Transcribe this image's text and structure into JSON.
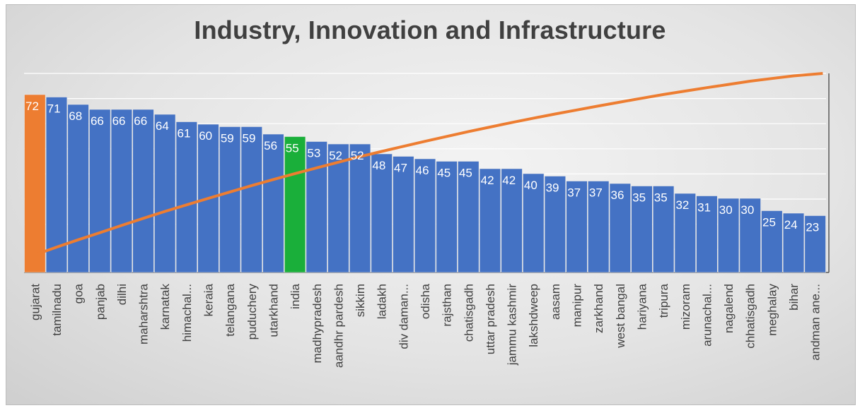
{
  "colors": {
    "bar": "#4472c4",
    "highlight_top": "#ed7d31",
    "highlight_india": "#1aaf3a",
    "cumulative_line": "#ed7d31"
  },
  "chart_data": {
    "type": "bar",
    "title": "Industry, Innovation and Infrastructure",
    "xlabel": "",
    "ylabel": "",
    "ylim": [
      0,
      72
    ],
    "grid": true,
    "legend": "none",
    "categories": [
      "gujarat",
      "tamilnadu",
      "goa",
      "panjab",
      "dilhi",
      "maharshtra",
      "karnatak",
      "himachal...",
      "keraia",
      "telangana",
      "puduchery",
      "utarkhand",
      "india",
      "madhypradesh",
      "aandhr pardesh",
      "sikkim",
      "ladakh",
      "div daman...",
      "odisha",
      "rajsthan",
      "chatisgadh",
      "uttar pradesh",
      "jammu kashmir",
      "lakshdweep",
      "aasam",
      "manipur",
      "zarkhand",
      "west bangal",
      "hariyana",
      "tripura",
      "mizoram",
      "arunachal...",
      "nagalend",
      "chhatisgadh",
      "meghalay",
      "bihar",
      "andman ane..."
    ],
    "series": [
      {
        "type": "bar",
        "values": [
          72,
          71,
          68,
          66,
          66,
          66,
          64,
          61,
          60,
          59,
          59,
          56,
          55,
          53,
          52,
          52,
          48,
          47,
          46,
          45,
          45,
          42,
          42,
          40,
          39,
          37,
          37,
          36,
          35,
          35,
          32,
          31,
          30,
          30,
          25,
          24,
          23
        ],
        "labels": [
          "72",
          "71",
          "68",
          "66",
          "66",
          "66",
          "64",
          "61",
          "60",
          "59",
          "59",
          "56",
          "55",
          "53",
          "52",
          "52",
          "48",
          "47",
          "46",
          "45",
          "45",
          "42",
          "42",
          "40",
          "39",
          "37",
          "37",
          "36",
          "35",
          "35",
          "32",
          "31",
          "30",
          "30",
          "25",
          "24",
          "23"
        ],
        "highlight": {
          "gujarat": "highlight_top",
          "india": "highlight_india"
        }
      },
      {
        "type": "line",
        "values": [
          72,
          143,
          211,
          277,
          343,
          409,
          473,
          534,
          594,
          653,
          712,
          768,
          823,
          876,
          928,
          980,
          1028,
          1075,
          1121,
          1166,
          1211,
          1253,
          1295,
          1335,
          1374,
          1411,
          1448,
          1484,
          1519,
          1554,
          1586,
          1617,
          1647,
          1677,
          1702,
          1726,
          1749
        ]
      }
    ]
  }
}
